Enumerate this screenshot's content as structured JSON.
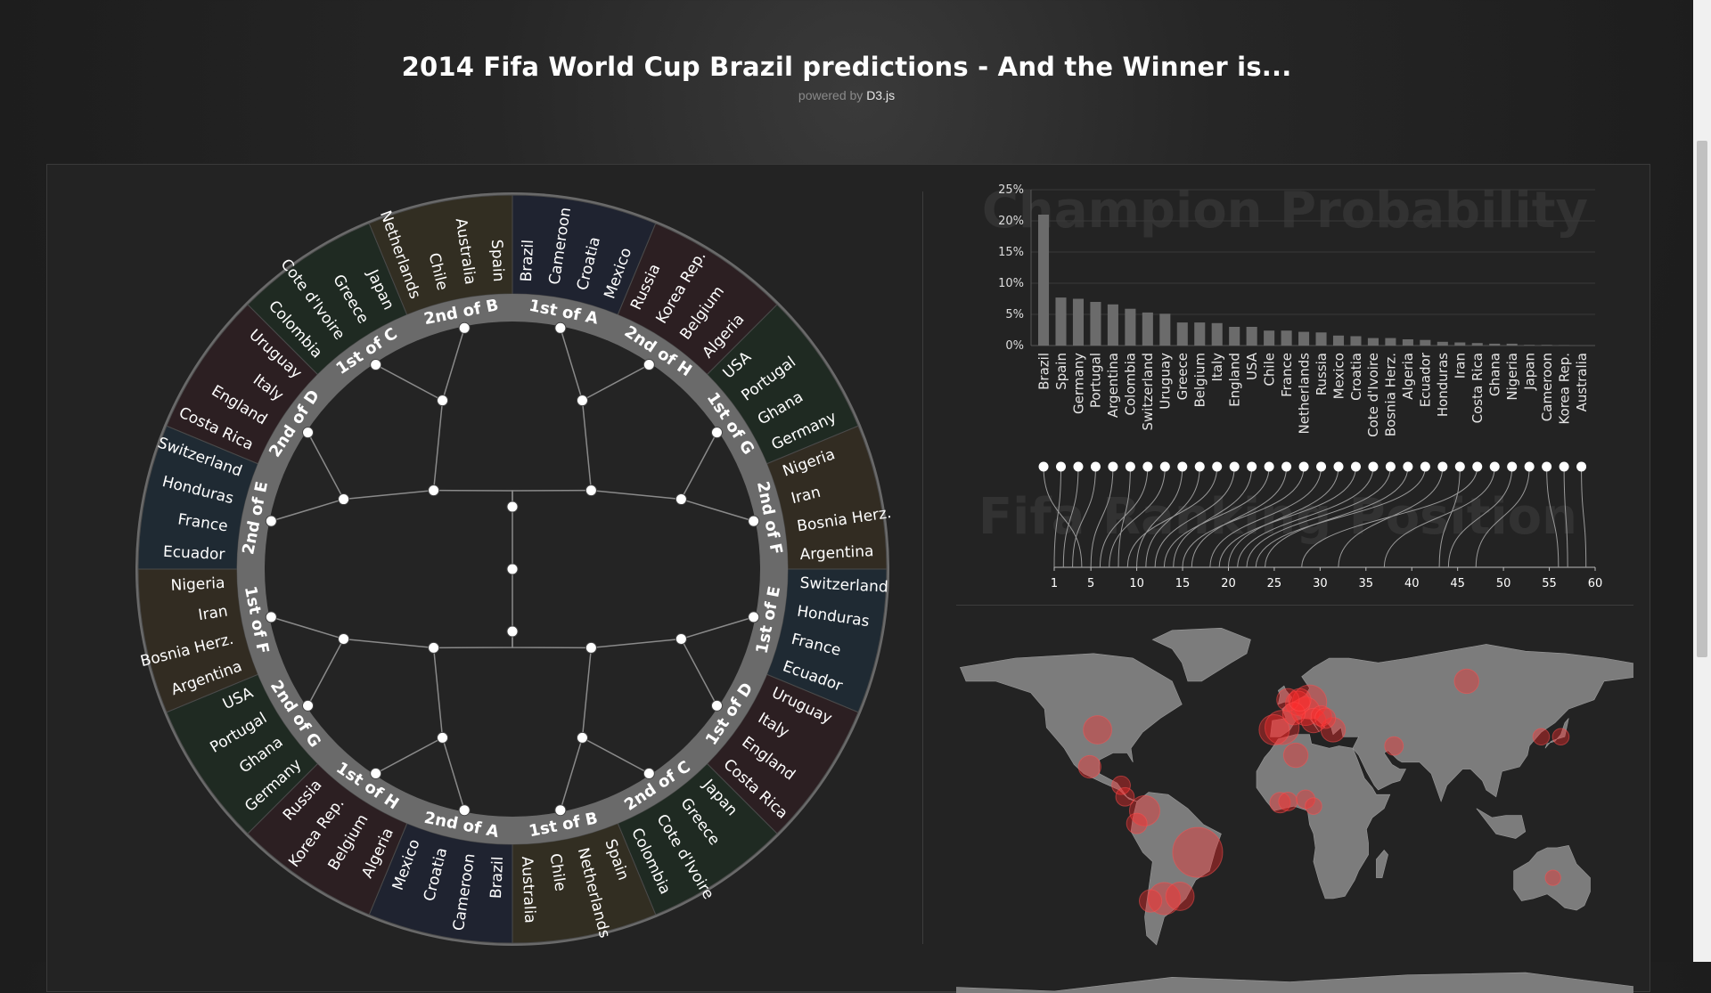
{
  "header": {
    "title": "2014 Fifa World Cup Brazil predictions - And the Winner is...",
    "subtitle_prefix": "powered by",
    "subtitle_link": "D3.js"
  },
  "colors": {
    "background": "#1d1d1d",
    "panel": "#232323",
    "ring": "#6a6a6a",
    "bracket_line": "#8a8a8a",
    "node": "#ffffff",
    "bar": "#6b6b6b",
    "land": "#7c7c7c",
    "heat": "#ff2a2a"
  },
  "bracket": {
    "segments": [
      {
        "label": "1st of A",
        "group_color": "#1f2330",
        "teams": [
          "Brazil",
          "Cameroon",
          "Croatia",
          "Mexico"
        ]
      },
      {
        "label": "2nd of H",
        "group_color": "#2c1f22",
        "teams": [
          "Russia",
          "Korea Rep.",
          "Belgium",
          "Algeria"
        ]
      },
      {
        "label": "1st of G",
        "group_color": "#1f2a22",
        "teams": [
          "USA",
          "Portugal",
          "Ghana",
          "Germany"
        ]
      },
      {
        "label": "2nd of F",
        "group_color": "#322c22",
        "teams": [
          "Nigeria",
          "Iran",
          "Bosnia Herz.",
          "Argentina"
        ]
      },
      {
        "label": "1st of E",
        "group_color": "#1f2a33",
        "teams": [
          "Switzerland",
          "Honduras",
          "France",
          "Ecuador"
        ]
      },
      {
        "label": "1st of D",
        "group_color": "#2c1f22",
        "teams": [
          "Uruguay",
          "Italy",
          "England",
          "Costa Rica"
        ]
      },
      {
        "label": "2nd of C",
        "group_color": "#1f2a22",
        "teams": [
          "Japan",
          "Greece",
          "Cote d'Ivoire",
          "Colombia"
        ]
      },
      {
        "label": "1st of B",
        "group_color": "#322e22",
        "teams": [
          "Spain",
          "Netherlands",
          "Chile",
          "Australia"
        ]
      },
      {
        "label": "2nd of A",
        "group_color": "#1f2330",
        "teams": [
          "Brazil",
          "Cameroon",
          "Croatia",
          "Mexico"
        ]
      },
      {
        "label": "1st of H",
        "group_color": "#2c1f22",
        "teams": [
          "Algeria",
          "Belgium",
          "Korea Rep.",
          "Russia"
        ]
      },
      {
        "label": "2nd of G",
        "group_color": "#1f2a22",
        "teams": [
          "Germany",
          "Ghana",
          "Portugal",
          "USA"
        ]
      },
      {
        "label": "1st of F",
        "group_color": "#322c22",
        "teams": [
          "Argentina",
          "Bosnia Herz.",
          "Iran",
          "Nigeria"
        ]
      },
      {
        "label": "2nd of E",
        "group_color": "#1f2a33",
        "teams": [
          "Ecuador",
          "France",
          "Honduras",
          "Switzerland"
        ]
      },
      {
        "label": "2nd of D",
        "group_color": "#2c1f22",
        "teams": [
          "Costa Rica",
          "England",
          "Italy",
          "Uruguay"
        ]
      },
      {
        "label": "1st of C",
        "group_color": "#1f2a22",
        "teams": [
          "Colombia",
          "Cote d'Ivoire",
          "Greece",
          "Japan"
        ]
      },
      {
        "label": "2nd of B",
        "group_color": "#322e22",
        "teams": [
          "Netherlands",
          "Chile",
          "Australia",
          "Spain"
        ]
      }
    ]
  },
  "chart_data": [
    {
      "type": "bar",
      "title": "Champion Probability",
      "categories": [
        "Brazil",
        "Spain",
        "Germany",
        "Portugal",
        "Argentina",
        "Colombia",
        "Switzerland",
        "Uruguay",
        "Greece",
        "Belgium",
        "Italy",
        "England",
        "USA",
        "Chile",
        "France",
        "Netherlands",
        "Russia",
        "Mexico",
        "Croatia",
        "Cote d'Ivoire",
        "Bosnia Herz.",
        "Algeria",
        "Ecuador",
        "Honduras",
        "Iran",
        "Costa Rica",
        "Ghana",
        "Nigeria",
        "Japan",
        "Cameroon",
        "Korea Rep.",
        "Australia"
      ],
      "values": [
        21.0,
        7.7,
        7.5,
        7.0,
        6.6,
        5.9,
        5.3,
        5.1,
        3.7,
        3.7,
        3.6,
        3.0,
        3.0,
        2.4,
        2.4,
        2.2,
        2.1,
        1.6,
        1.5,
        1.2,
        1.2,
        1.0,
        0.9,
        0.6,
        0.5,
        0.4,
        0.3,
        0.3,
        0.1,
        0.1,
        0.05,
        0.0
      ],
      "yticks": [
        "0%",
        "5%",
        "10%",
        "15%",
        "20%",
        "25%"
      ],
      "ylim": [
        0,
        25
      ],
      "grid": true
    },
    {
      "type": "line",
      "title": "Fifa Ranking Position",
      "teams": [
        "Brazil",
        "Spain",
        "Germany",
        "Portugal",
        "Argentina",
        "Colombia",
        "Switzerland",
        "Uruguay",
        "Greece",
        "Belgium",
        "Italy",
        "England",
        "USA",
        "Chile",
        "France",
        "Netherlands",
        "Russia",
        "Mexico",
        "Croatia",
        "Cote d'Ivoire",
        "Bosnia Herz.",
        "Algeria",
        "Ecuador",
        "Honduras",
        "Iran",
        "Costa Rica",
        "Ghana",
        "Nigeria",
        "Japan",
        "Cameroon",
        "Korea Rep.",
        "Australia"
      ],
      "ranking": [
        4,
        1,
        2,
        3,
        5,
        8,
        6,
        7,
        10,
        11,
        9,
        12,
        14,
        13,
        16,
        15,
        18,
        20,
        19,
        21,
        22,
        24,
        23,
        32,
        43,
        28,
        37,
        44,
        47,
        56,
        57,
        59
      ],
      "xticks": [
        1,
        5,
        10,
        15,
        20,
        25,
        30,
        35,
        40,
        45,
        50,
        55,
        60
      ],
      "xlim": [
        1,
        60
      ]
    }
  ],
  "map": {
    "hotspots": [
      {
        "name": "Brazil",
        "lon": -47,
        "lat": -14,
        "weight": 1.0
      },
      {
        "name": "Spain",
        "lon": -4,
        "lat": 40,
        "weight": 0.6
      },
      {
        "name": "Germany",
        "lon": 10,
        "lat": 51,
        "weight": 0.6
      },
      {
        "name": "Argentina",
        "lon": -64,
        "lat": -34,
        "weight": 0.55
      },
      {
        "name": "Portugal",
        "lon": -8,
        "lat": 39,
        "weight": 0.5
      },
      {
        "name": "Colombia",
        "lon": -74,
        "lat": 4,
        "weight": 0.5
      },
      {
        "name": "Switzerland",
        "lon": 8,
        "lat": 47,
        "weight": 0.45
      },
      {
        "name": "Uruguay",
        "lon": -56,
        "lat": -33,
        "weight": 0.45
      },
      {
        "name": "Greece",
        "lon": 22,
        "lat": 39,
        "weight": 0.35
      },
      {
        "name": "Belgium",
        "lon": 4,
        "lat": 50.5,
        "weight": 0.35
      },
      {
        "name": "Italy",
        "lon": 12,
        "lat": 43,
        "weight": 0.35
      },
      {
        "name": "England",
        "lon": -1,
        "lat": 52,
        "weight": 0.3
      },
      {
        "name": "USA",
        "lon": -98,
        "lat": 39,
        "weight": 0.45
      },
      {
        "name": "Chile",
        "lon": -71,
        "lat": -35,
        "weight": 0.3
      },
      {
        "name": "France",
        "lon": 2,
        "lat": 46,
        "weight": 0.3
      },
      {
        "name": "Netherlands",
        "lon": 5,
        "lat": 52,
        "weight": 0.3
      },
      {
        "name": "Russia",
        "lon": 90,
        "lat": 60,
        "weight": 0.35
      },
      {
        "name": "Mexico",
        "lon": -102,
        "lat": 23,
        "weight": 0.3
      },
      {
        "name": "Croatia",
        "lon": 16,
        "lat": 45,
        "weight": 0.25
      },
      {
        "name": "Cote d'Ivoire",
        "lon": -5,
        "lat": 7.5,
        "weight": 0.25
      },
      {
        "name": "Bosnia Herz.",
        "lon": 18,
        "lat": 44,
        "weight": 0.25
      },
      {
        "name": "Algeria",
        "lon": 3,
        "lat": 28,
        "weight": 0.35
      },
      {
        "name": "Ecuador",
        "lon": -78,
        "lat": -1.5,
        "weight": 0.25
      },
      {
        "name": "Honduras",
        "lon": -86,
        "lat": 15,
        "weight": 0.2
      },
      {
        "name": "Iran",
        "lon": 53,
        "lat": 32,
        "weight": 0.2
      },
      {
        "name": "Costa Rica",
        "lon": -84,
        "lat": 10,
        "weight": 0.2
      },
      {
        "name": "Ghana",
        "lon": -1,
        "lat": 8,
        "weight": 0.2
      },
      {
        "name": "Nigeria",
        "lon": 8,
        "lat": 9,
        "weight": 0.2
      },
      {
        "name": "Japan",
        "lon": 138,
        "lat": 36,
        "weight": 0.15
      },
      {
        "name": "Cameroon",
        "lon": 12,
        "lat": 6,
        "weight": 0.15
      },
      {
        "name": "Korea Rep.",
        "lon": 128,
        "lat": 36,
        "weight": 0.15
      },
      {
        "name": "Australia",
        "lon": 134,
        "lat": -25,
        "weight": 0.12
      }
    ]
  }
}
